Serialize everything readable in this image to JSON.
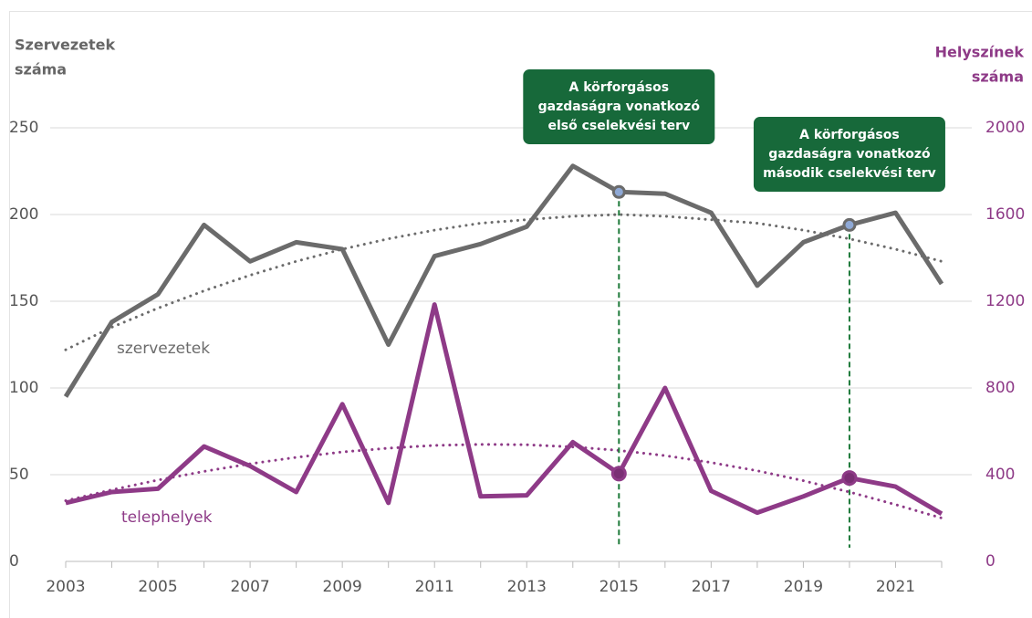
{
  "chart_data": {
    "type": "line",
    "y_title": [
      "Szervezetek",
      "száma"
    ],
    "y2_title": [
      "Helyszínek",
      "száma"
    ],
    "x": [
      2003,
      2004,
      2005,
      2006,
      2007,
      2008,
      2009,
      2010,
      2011,
      2012,
      2013,
      2014,
      2015,
      2016,
      2017,
      2018,
      2019,
      2020,
      2021,
      2022
    ],
    "xlim": [
      2003,
      2022
    ],
    "xticks": [
      2003,
      2005,
      2007,
      2009,
      2011,
      2013,
      2015,
      2017,
      2019,
      2021
    ],
    "ylim": [
      0,
      250
    ],
    "yticks": [
      0,
      50,
      100,
      150,
      200,
      250
    ],
    "y2lim": [
      0,
      2000
    ],
    "y2ticks": [
      0,
      400,
      800,
      1200,
      1600,
      2000
    ],
    "grid": true,
    "series": [
      {
        "name": "szervezetek",
        "color": "#6b6b6b",
        "values": [
          95,
          138,
          154,
          194,
          173,
          184,
          180,
          125,
          176,
          183,
          193,
          228,
          213,
          212,
          201,
          159,
          184,
          194,
          201,
          160
        ]
      },
      {
        "name": "telephelyek",
        "color": "#8e3a87",
        "axis": "y2",
        "values": [
          270,
          320,
          335,
          530,
          440,
          320,
          725,
          270,
          1185,
          300,
          305,
          550,
          405,
          800,
          325,
          225,
          300,
          385,
          345,
          220
        ]
      }
    ],
    "trends": [
      {
        "color": "#6b6b6b",
        "values": [
          122,
          135,
          146,
          156,
          165,
          173,
          180,
          186,
          191,
          195,
          197,
          199,
          200,
          199,
          197,
          195,
          191,
          186,
          180,
          173
        ]
      },
      {
        "color": "#8e3a87",
        "axis": "y2",
        "values": [
          280,
          330,
          375,
          415,
          450,
          480,
          505,
          522,
          535,
          540,
          538,
          528,
          512,
          488,
          456,
          418,
          372,
          320,
          262,
          200
        ]
      }
    ],
    "annotations": [
      {
        "x": 2015,
        "lines": [
          "A körforgásos",
          "gazdaságra vonatkozó",
          "első cselekvési terv"
        ]
      },
      {
        "x": 2020,
        "lines": [
          "A körforgásos",
          "gazdaságra vonatkozó",
          "második cselekvési terv"
        ]
      }
    ]
  }
}
